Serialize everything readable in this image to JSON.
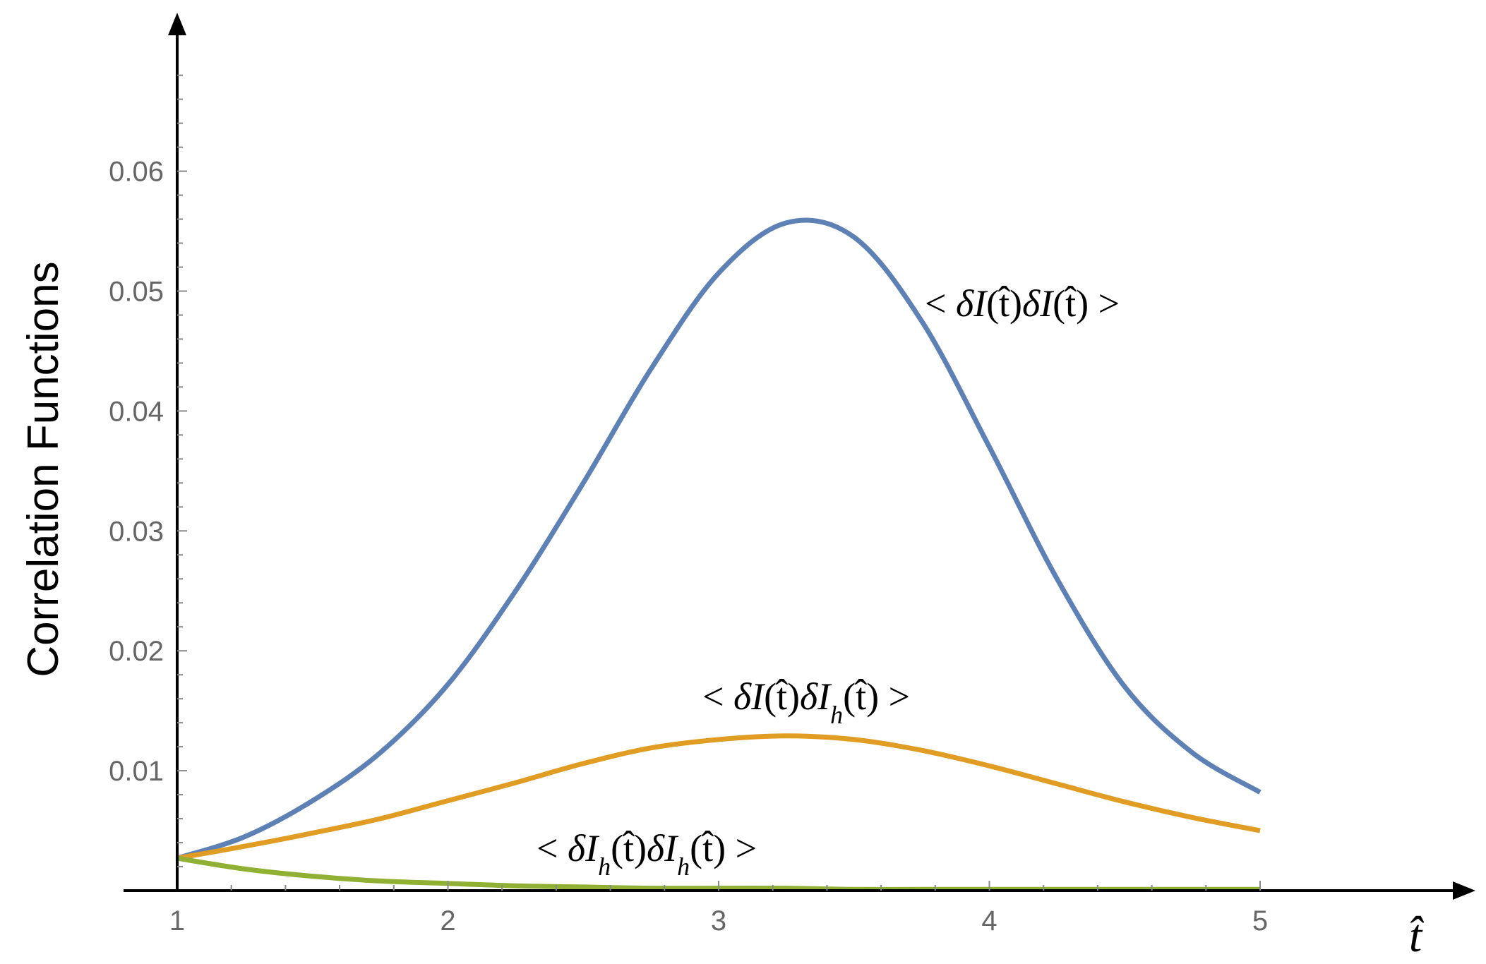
{
  "chart_data": {
    "type": "line",
    "title": "",
    "xlabel": "t̂",
    "ylabel": "Correlation Functions",
    "xlim": [
      1,
      5
    ],
    "ylim": [
      0,
      0.07
    ],
    "x_ticks": [
      1,
      2,
      3,
      4,
      5
    ],
    "x_tick_labels": [
      "1",
      "2",
      "3",
      "4",
      "5"
    ],
    "y_ticks": [
      0.01,
      0.02,
      0.03,
      0.04,
      0.05,
      0.06
    ],
    "y_tick_labels": [
      "0.01",
      "0.02",
      "0.03",
      "0.04",
      "0.05",
      "0.06"
    ],
    "grid": false,
    "legend": "none",
    "x": [
      1.0,
      1.25,
      1.5,
      1.75,
      2.0,
      2.25,
      2.5,
      2.75,
      3.0,
      3.25,
      3.5,
      3.75,
      4.0,
      4.25,
      4.5,
      4.75,
      5.0
    ],
    "series": [
      {
        "label_parts": {
          "open": "< ",
          "d1": "δ",
          "v1": "I",
          "s1": "",
          "m1": "(t̂)",
          "d2": "δ",
          "v2": "I",
          "s2": "",
          "m2": "(t̂)",
          "close": " >"
        },
        "color": "#5e81b5",
        "values": [
          0.0027,
          0.0045,
          0.0075,
          0.0115,
          0.0172,
          0.025,
          0.034,
          0.0435,
          0.0515,
          0.0557,
          0.0545,
          0.0475,
          0.037,
          0.026,
          0.017,
          0.0115,
          0.0082
        ]
      },
      {
        "label_parts": {
          "open": "< ",
          "d1": "δ",
          "v1": "I",
          "s1": "",
          "m1": "(t̂)",
          "d2": "δ",
          "v2": "I",
          "s2": "h",
          "m2": "(t̂)",
          "close": " >"
        },
        "color": "#e19c24",
        "values": [
          0.0027,
          0.0037,
          0.0048,
          0.006,
          0.0075,
          0.009,
          0.0106,
          0.0119,
          0.0126,
          0.0129,
          0.0126,
          0.0117,
          0.0104,
          0.0089,
          0.0074,
          0.0061,
          0.005
        ]
      },
      {
        "label_parts": {
          "open": "< ",
          "d1": "δ",
          "v1": "I",
          "s1": "h",
          "m1": "(t̂)",
          "d2": "δ",
          "v2": "I",
          "s2": "h",
          "m2": "(t̂)",
          "close": " >"
        },
        "color": "#8fb032",
        "values": [
          0.0027,
          0.0018,
          0.0012,
          0.0008,
          0.0006,
          0.0004,
          0.0003,
          0.0002,
          0.0002,
          0.0002,
          0.0001,
          0.0001,
          0.0001,
          0.0001,
          0.0001,
          0.0001,
          0.0001
        ]
      }
    ]
  }
}
